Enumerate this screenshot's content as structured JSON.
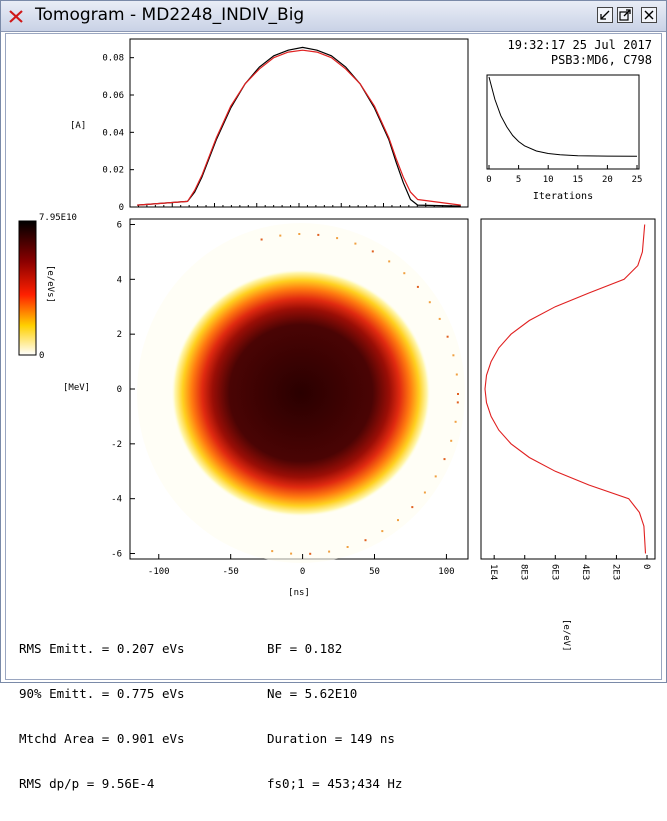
{
  "window": {
    "title": "Tomogram - MD2248_INDIV_Big",
    "app_icon": "close-x-icon",
    "buttons": [
      "minimize-icon",
      "maximize-icon",
      "close-icon"
    ]
  },
  "timestamp": "19:32:17 25 Jul 2017",
  "cycle_label": "PSB3:MD6, C798",
  "top_profile": {
    "ylabel": "[A]",
    "yticks": [
      "0",
      "0.02",
      "0.04",
      "0.06",
      "0.08"
    ],
    "ylim": [
      0,
      0.09
    ],
    "xlim": [
      -120,
      115
    ]
  },
  "iterations": {
    "xlabel": "Iterations",
    "xticks": [
      "0",
      "5",
      "10",
      "15",
      "20",
      "25"
    ],
    "xlim": [
      0,
      25
    ]
  },
  "colorbar": {
    "max_label": "7.95E10",
    "min_label": "0",
    "unit": "[e/eVs]"
  },
  "phase_space": {
    "xlabel": "[ns]",
    "ylabel": "[MeV]",
    "xticks": [
      "-100",
      "-50",
      "0",
      "50",
      "100"
    ],
    "yticks": [
      "6",
      "4",
      "2",
      "0",
      "-2",
      "-4",
      "-6"
    ],
    "xlim": [
      -120,
      115
    ],
    "ylim": [
      -6.2,
      6.2
    ]
  },
  "energy_profile": {
    "xlabel": "[e/eV]",
    "xticks": [
      "1E4",
      "8E3",
      "6E3",
      "4E3",
      "2E3",
      "0"
    ]
  },
  "chart_data": [
    {
      "type": "line",
      "title": "",
      "xlabel": "",
      "ylabel": "[A]",
      "xlim": [
        -120,
        115
      ],
      "ylim": [
        0,
        0.09
      ],
      "x": [
        -115,
        -80,
        -75,
        -70,
        -60,
        -50,
        -40,
        -30,
        -20,
        -10,
        0,
        10,
        20,
        30,
        40,
        50,
        60,
        65,
        70,
        75,
        80,
        110
      ],
      "series": [
        {
          "color": "#000000",
          "values": [
            0.001,
            0.003,
            0.008,
            0.016,
            0.036,
            0.053,
            0.066,
            0.075,
            0.081,
            0.084,
            0.0855,
            0.084,
            0.081,
            0.075,
            0.066,
            0.053,
            0.036,
            0.024,
            0.013,
            0.004,
            0.001,
            0.0005
          ]
        },
        {
          "color": "#e02020",
          "values": [
            0.001,
            0.003,
            0.009,
            0.017,
            0.037,
            0.054,
            0.066,
            0.074,
            0.08,
            0.083,
            0.084,
            0.083,
            0.08,
            0.074,
            0.066,
            0.054,
            0.037,
            0.026,
            0.016,
            0.008,
            0.004,
            0.001
          ]
        }
      ]
    },
    {
      "type": "line",
      "title": "",
      "xlabel": "Iterations",
      "xlim": [
        0,
        25
      ],
      "x": [
        0,
        1,
        2,
        3,
        4,
        5,
        6,
        8,
        10,
        12,
        15,
        20,
        25
      ],
      "series": [
        {
          "color": "#000000",
          "values": [
            1.0,
            0.74,
            0.55,
            0.42,
            0.32,
            0.25,
            0.2,
            0.14,
            0.11,
            0.095,
            0.085,
            0.08,
            0.078
          ]
        }
      ]
    },
    {
      "type": "line",
      "title": "",
      "xlabel": "[e/eV]",
      "ylabel": "[MeV]",
      "ylim": [
        -6.2,
        6.2
      ],
      "x": [
        -6.0,
        -5.0,
        -4.5,
        -4.0,
        -3.5,
        -3.0,
        -2.5,
        -2.0,
        -1.5,
        -1.0,
        -0.5,
        0,
        0.5,
        1.0,
        1.5,
        2.0,
        2.5,
        3.0,
        3.5,
        4.0,
        4.5,
        5.0,
        6.0
      ],
      "series": [
        {
          "color": "#e02020",
          "values": [
            100,
            200,
            500,
            1200,
            3800,
            6000,
            7700,
            8900,
            9700,
            10200,
            10500,
            10600,
            10500,
            10200,
            9700,
            8900,
            7700,
            6000,
            3800,
            1500,
            600,
            300,
            150
          ]
        }
      ]
    }
  ],
  "info": {
    "left": [
      "RMS Emitt. = 0.207 eVs",
      "90% Emitt. = 0.775 eVs",
      "Mtchd Area = 0.901 eVs",
      "RMS dp/p = 9.56E-4"
    ],
    "right": [
      "BF = 0.182",
      "Ne = 5.62E10",
      "Duration = 149 ns",
      "fs0;1 = 453;434 Hz"
    ]
  }
}
